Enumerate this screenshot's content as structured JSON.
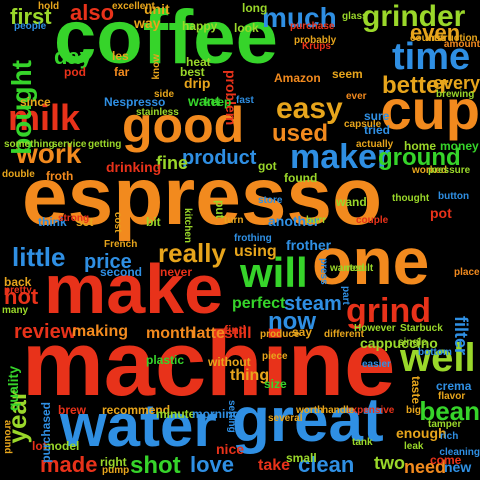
{
  "cloud": {
    "colors": {
      "orange": "#f28a1e",
      "green": "#36d42a",
      "blue": "#2f8fe3",
      "red": "#e8321a",
      "lime": "#9ad72a",
      "gold": "#e7a51c",
      "teal": "#2ab7b0",
      "violet": "#8e5be8"
    },
    "words": [
      {
        "id": "coffee",
        "text": "coffee",
        "color": "#36d42a"
      },
      {
        "id": "espresso",
        "text": "espresso",
        "color": "#f28a1e"
      },
      {
        "id": "machine",
        "text": "machine",
        "color": "#e8321a"
      },
      {
        "id": "water",
        "text": "water",
        "color": "#2f8fe3"
      },
      {
        "id": "great",
        "text": "great",
        "color": "#2f8fe3"
      },
      {
        "id": "make",
        "text": "make",
        "color": "#e8321a"
      },
      {
        "id": "one",
        "text": "one",
        "color": "#f28a1e"
      },
      {
        "id": "good",
        "text": "good",
        "color": "#f28a1e"
      },
      {
        "id": "cup",
        "text": "cup",
        "color": "#f28a1e"
      },
      {
        "id": "time",
        "text": "time",
        "color": "#2f8fe3"
      },
      {
        "id": "will",
        "text": "will",
        "color": "#36d42a"
      },
      {
        "id": "grind",
        "text": "grind",
        "color": "#e8321a"
      },
      {
        "id": "maker",
        "text": "maker",
        "color": "#2f8fe3"
      },
      {
        "id": "milk",
        "text": "milk",
        "color": "#e8321a"
      },
      {
        "id": "work",
        "text": "work",
        "color": "#f28a1e"
      },
      {
        "id": "grinder",
        "text": "grinder",
        "color": "#9ad72a"
      },
      {
        "id": "much",
        "text": "much",
        "color": "#2f8fe3"
      },
      {
        "id": "also",
        "text": "also",
        "color": "#e8321a"
      },
      {
        "id": "first",
        "text": "first",
        "color": "#9ad72a"
      },
      {
        "id": "easy",
        "text": "easy",
        "color": "#e7a51c"
      },
      {
        "id": "used",
        "text": "used",
        "color": "#f28a1e"
      },
      {
        "id": "ground",
        "text": "ground",
        "color": "#36d42a"
      },
      {
        "id": "well",
        "text": "well",
        "color": "#9ad72a"
      },
      {
        "id": "little",
        "text": "little",
        "color": "#2f8fe3"
      },
      {
        "id": "really",
        "text": "really",
        "color": "#e7a51c"
      },
      {
        "id": "now",
        "text": "now",
        "color": "#2f8fe3"
      },
      {
        "id": "bean",
        "text": "bean",
        "color": "#36d42a"
      },
      {
        "id": "year",
        "text": "year",
        "color": "#9ad72a"
      },
      {
        "id": "shot",
        "text": "shot",
        "color": "#36d42a"
      },
      {
        "id": "love",
        "text": "love",
        "color": "#2f8fe3"
      },
      {
        "id": "clean",
        "text": "clean",
        "color": "#2f8fe3"
      },
      {
        "id": "made",
        "text": "made",
        "color": "#e8321a"
      },
      {
        "id": "day",
        "text": "day",
        "color": "#36d42a"
      },
      {
        "id": "even",
        "text": "even",
        "color": "#e7a51c"
      },
      {
        "id": "better",
        "text": "better",
        "color": "#e7a51c"
      },
      {
        "id": "every",
        "text": "every",
        "color": "#e7a51c"
      },
      {
        "id": "bought",
        "text": "bought",
        "color": "#36d42a"
      },
      {
        "id": "product",
        "text": "product",
        "color": "#2f8fe3"
      },
      {
        "id": "fine",
        "text": "fine",
        "color": "#9ad72a"
      },
      {
        "id": "price",
        "text": "price",
        "color": "#2f8fe3"
      },
      {
        "id": "hot",
        "text": "hot",
        "color": "#e8321a"
      },
      {
        "id": "review",
        "text": "review",
        "color": "#e8321a"
      },
      {
        "id": "steam",
        "text": "steam",
        "color": "#2f8fe3"
      },
      {
        "id": "perfect",
        "text": "perfect",
        "color": "#36d42a"
      },
      {
        "id": "using",
        "text": "using",
        "color": "#e7a51c"
      },
      {
        "id": "two",
        "text": "two",
        "color": "#9ad72a"
      },
      {
        "id": "need",
        "text": "need",
        "color": "#f28a1e"
      },
      {
        "id": "take",
        "text": "take",
        "color": "#e8321a"
      },
      {
        "id": "filter",
        "text": "filter",
        "color": "#2f8fe3"
      },
      {
        "id": "cappuccino",
        "text": "cappuccino",
        "color": "#9ad72a"
      },
      {
        "id": "making",
        "text": "making",
        "color": "#f28a1e"
      },
      {
        "id": "month",
        "text": "month",
        "color": "#f28a1e"
      },
      {
        "id": "latte",
        "text": "latte",
        "color": "#f28a1e"
      },
      {
        "id": "still",
        "text": "still",
        "color": "#e8321a"
      },
      {
        "id": "thing",
        "text": "thing",
        "color": "#e7a51c"
      },
      {
        "id": "quality",
        "text": "quality",
        "color": "#36d42a"
      },
      {
        "id": "enough",
        "text": "enough",
        "color": "#e7a51c"
      },
      {
        "id": "want",
        "text": "want",
        "color": "#36d42a"
      },
      {
        "id": "drinking",
        "text": "drinking",
        "color": "#e8321a"
      },
      {
        "id": "another",
        "text": "another",
        "color": "#2f8fe3"
      },
      {
        "id": "frother",
        "text": "frother",
        "color": "#2f8fe3"
      },
      {
        "id": "recommend",
        "text": "recommend",
        "color": "#e7a51c"
      },
      {
        "id": "brew",
        "text": "brew",
        "color": "#e8321a"
      },
      {
        "id": "right",
        "text": "right",
        "color": "#9ad72a"
      },
      {
        "id": "model",
        "text": "model",
        "color": "#9ad72a"
      },
      {
        "id": "lot",
        "text": "lot",
        "color": "#e8321a"
      },
      {
        "id": "nice",
        "text": "nice",
        "color": "#e8321a"
      },
      {
        "id": "small",
        "text": "small",
        "color": "#9ad72a"
      },
      {
        "id": "new",
        "text": "new",
        "color": "#2f8fe3"
      },
      {
        "id": "since",
        "text": "since",
        "color": "#e7a51c"
      },
      {
        "id": "les",
        "text": "les",
        "color": "#e7a51c"
      },
      {
        "id": "far",
        "text": "far",
        "color": "#f28a1e"
      },
      {
        "id": "pod",
        "text": "pod",
        "color": "#e8321a"
      },
      {
        "id": "Nespresso",
        "text": "Nespresso",
        "color": "#2f8fe3"
      },
      {
        "id": "drip",
        "text": "drip",
        "color": "#e7a51c"
      },
      {
        "id": "heat",
        "text": "heat",
        "color": "#9ad72a"
      },
      {
        "id": "best",
        "text": "best",
        "color": "#9ad72a"
      },
      {
        "id": "Amazon",
        "text": "Amazon",
        "color": "#f28a1e"
      },
      {
        "id": "seem",
        "text": "seem",
        "color": "#e7a51c"
      },
      {
        "id": "got",
        "text": "got",
        "color": "#9ad72a"
      },
      {
        "id": "problem",
        "text": "problem",
        "color": "#e8321a"
      },
      {
        "id": "found",
        "text": "found",
        "color": "#9ad72a"
      },
      {
        "id": "keep",
        "text": "keep",
        "color": "#36d42a"
      },
      {
        "id": "look",
        "text": "look",
        "color": "#9ad72a"
      },
      {
        "id": "unit",
        "text": "unit",
        "color": "#e7a51c"
      },
      {
        "id": "way",
        "text": "way",
        "color": "#e7a51c"
      },
      {
        "id": "happy",
        "text": "happy",
        "color": "#9ad72a"
      },
      {
        "id": "long",
        "text": "long",
        "color": "#9ad72a"
      },
      {
        "id": "froth",
        "text": "froth",
        "color": "#f28a1e"
      },
      {
        "id": "set",
        "text": "set",
        "color": "#e7a51c"
      },
      {
        "id": "think",
        "text": "think",
        "color": "#2f8fe3"
      },
      {
        "id": "bit",
        "text": "bit",
        "color": "#9ad72a"
      },
      {
        "id": "French",
        "text": "French",
        "color": "#e7a51c"
      },
      {
        "id": "second",
        "text": "second",
        "color": "#2f8fe3"
      },
      {
        "id": "never",
        "text": "never",
        "color": "#e8321a"
      },
      {
        "id": "back",
        "text": "back",
        "color": "#e7a51c"
      },
      {
        "id": "pretty",
        "text": "pretty",
        "color": "#e8321a"
      },
      {
        "id": "many",
        "text": "many",
        "color": "#9ad72a"
      },
      {
        "id": "place",
        "text": "place",
        "color": "#f28a1e"
      },
      {
        "id": "However",
        "text": "However",
        "color": "#9ad72a"
      },
      {
        "id": "Starbuck",
        "text": "Starbuck",
        "color": "#9ad72a"
      },
      {
        "id": "plastic",
        "text": "plastic",
        "color": "#36d42a"
      },
      {
        "id": "without",
        "text": "without",
        "color": "#e7a51c"
      },
      {
        "id": "size",
        "text": "size",
        "color": "#36d42a"
      },
      {
        "id": "crema",
        "text": "crema",
        "color": "#2f8fe3"
      },
      {
        "id": "taste",
        "text": "taste",
        "color": "#e7a51c"
      },
      {
        "id": "minute",
        "text": "minute",
        "color": "#9ad72a"
      },
      {
        "id": "morning",
        "text": "morning",
        "color": "#2f8fe3"
      },
      {
        "id": "come",
        "text": "come",
        "color": "#e8321a"
      },
      {
        "id": "purchased",
        "text": "purchased",
        "color": "#2f8fe3"
      },
      {
        "id": "pump",
        "text": "pump",
        "color": "#e7a51c"
      },
      {
        "id": "tamper",
        "text": "tamper",
        "color": "#9ad72a"
      },
      {
        "id": "capsule",
        "text": "capsule",
        "color": "#e7a51c"
      },
      {
        "id": "home",
        "text": "home",
        "color": "#9ad72a"
      },
      {
        "id": "money",
        "text": "money",
        "color": "#36d42a"
      },
      {
        "id": "worked",
        "text": "worked",
        "color": "#e7a51c"
      },
      {
        "id": "store",
        "text": "store",
        "color": "#2f8fe3"
      },
      {
        "id": "wand",
        "text": "wand",
        "color": "#9ad72a"
      },
      {
        "id": "pot",
        "text": "pot",
        "color": "#e8321a"
      },
      {
        "id": "kitchen",
        "text": "kitchen",
        "color": "#9ad72a"
      },
      {
        "id": "counter",
        "text": "counter",
        "color": "#e7a51c"
      },
      {
        "id": "amount",
        "text": "amount",
        "color": "#f28a1e"
      },
      {
        "id": "instruction",
        "text": "instruction",
        "color": "#e7a51c"
      },
      {
        "id": "brewing",
        "text": "brewing",
        "color": "#9ad72a"
      },
      {
        "id": "pressure",
        "text": "pressure",
        "color": "#9ad72a"
      },
      {
        "id": "double",
        "text": "double",
        "color": "#e7a51c"
      },
      {
        "id": "something",
        "text": "something",
        "color": "#9ad72a"
      },
      {
        "id": "service",
        "text": "service",
        "color": "#9ad72a"
      },
      {
        "id": "getting",
        "text": "getting",
        "color": "#9ad72a"
      },
      {
        "id": "people",
        "text": "people",
        "color": "#2f8fe3"
      },
      {
        "id": "hold",
        "text": "hold",
        "color": "#e7a51c"
      },
      {
        "id": "excellent",
        "text": "excellent",
        "color": "#e7a51c"
      },
      {
        "id": "side",
        "text": "side",
        "color": "#e7a51c"
      },
      {
        "id": "know",
        "text": "know",
        "color": "#e7a51c"
      },
      {
        "id": "stainless",
        "text": "stainless",
        "color": "#9ad72a"
      },
      {
        "id": "fast",
        "text": "fast",
        "color": "#2f8fe3"
      },
      {
        "id": "purchase",
        "text": "purchase",
        "color": "#e8321a"
      },
      {
        "id": "probably",
        "text": "probably",
        "color": "#e7a51c"
      },
      {
        "id": "glass",
        "text": "glass",
        "color": "#9ad72a"
      },
      {
        "id": "Krups",
        "text": "Krups",
        "color": "#e8321a"
      },
      {
        "id": "sure",
        "text": "sure",
        "color": "#2f8fe3"
      },
      {
        "id": "tried",
        "text": "tried",
        "color": "#2f8fe3"
      },
      {
        "id": "actually",
        "text": "actually",
        "color": "#e7a51c"
      },
      {
        "id": "ever",
        "text": "ever",
        "color": "#f28a1e"
      },
      {
        "id": "strong",
        "text": "strong",
        "color": "#e8321a"
      },
      {
        "id": "cost",
        "text": "cost",
        "color": "#e7a51c"
      },
      {
        "id": "put",
        "text": "put",
        "color": "#9ad72a"
      },
      {
        "id": "turn",
        "text": "turn",
        "color": "#e7a51c"
      },
      {
        "id": "burr",
        "text": "burr",
        "color": "#9ad72a"
      },
      {
        "id": "couple",
        "text": "couple",
        "color": "#e8321a"
      },
      {
        "id": "thought",
        "text": "thought",
        "color": "#9ad72a"
      },
      {
        "id": "button",
        "text": "button",
        "color": "#2f8fe3"
      },
      {
        "id": "frothing",
        "text": "frothing",
        "color": "#2f8fe3"
      },
      {
        "id": "press",
        "text": "press",
        "color": "#2f8fe3"
      },
      {
        "id": "wanted",
        "text": "wanted",
        "color": "#9ad72a"
      },
      {
        "id": "part",
        "text": "part",
        "color": "#2f8fe3"
      },
      {
        "id": "result",
        "text": "result",
        "color": "#9ad72a"
      },
      {
        "id": "produce",
        "text": "produce",
        "color": "#e7a51c"
      },
      {
        "id": "say",
        "text": "say",
        "color": "#e7a51c"
      },
      {
        "id": "find",
        "text": "find",
        "color": "#e8321a"
      },
      {
        "id": "different",
        "text": "different",
        "color": "#e7a51c"
      },
      {
        "id": "single",
        "text": "single",
        "color": "#9ad72a"
      },
      {
        "id": "piece",
        "text": "piece",
        "color": "#e7a51c"
      },
      {
        "id": "flavor",
        "text": "flavor",
        "color": "#e7a51c"
      },
      {
        "id": "expensive",
        "text": "expensive",
        "color": "#e8321a"
      },
      {
        "id": "worth",
        "text": "worth",
        "color": "#e7a51c"
      },
      {
        "id": "handle",
        "text": "handle",
        "color": "#e7a51c"
      },
      {
        "id": "several",
        "text": "several",
        "color": "#e7a51c"
      },
      {
        "id": "setting",
        "text": "setting",
        "color": "#2f8fe3"
      },
      {
        "id": "big",
        "text": "big",
        "color": "#e7a51c"
      },
      {
        "id": "around",
        "text": "around",
        "color": "#e7a51c"
      },
      {
        "id": "rich",
        "text": "rich",
        "color": "#2f8fe3"
      },
      {
        "id": "leak",
        "text": "leak",
        "color": "#9ad72a"
      },
      {
        "id": "tank",
        "text": "tank",
        "color": "#9ad72a"
      },
      {
        "id": "cleaning",
        "text": "cleaning",
        "color": "#2f8fe3"
      },
      {
        "id": "bottom",
        "text": "bottom",
        "color": "#2f8fe3"
      },
      {
        "id": "easier",
        "text": "easier",
        "color": "#2f8fe3"
      }
    ]
  }
}
